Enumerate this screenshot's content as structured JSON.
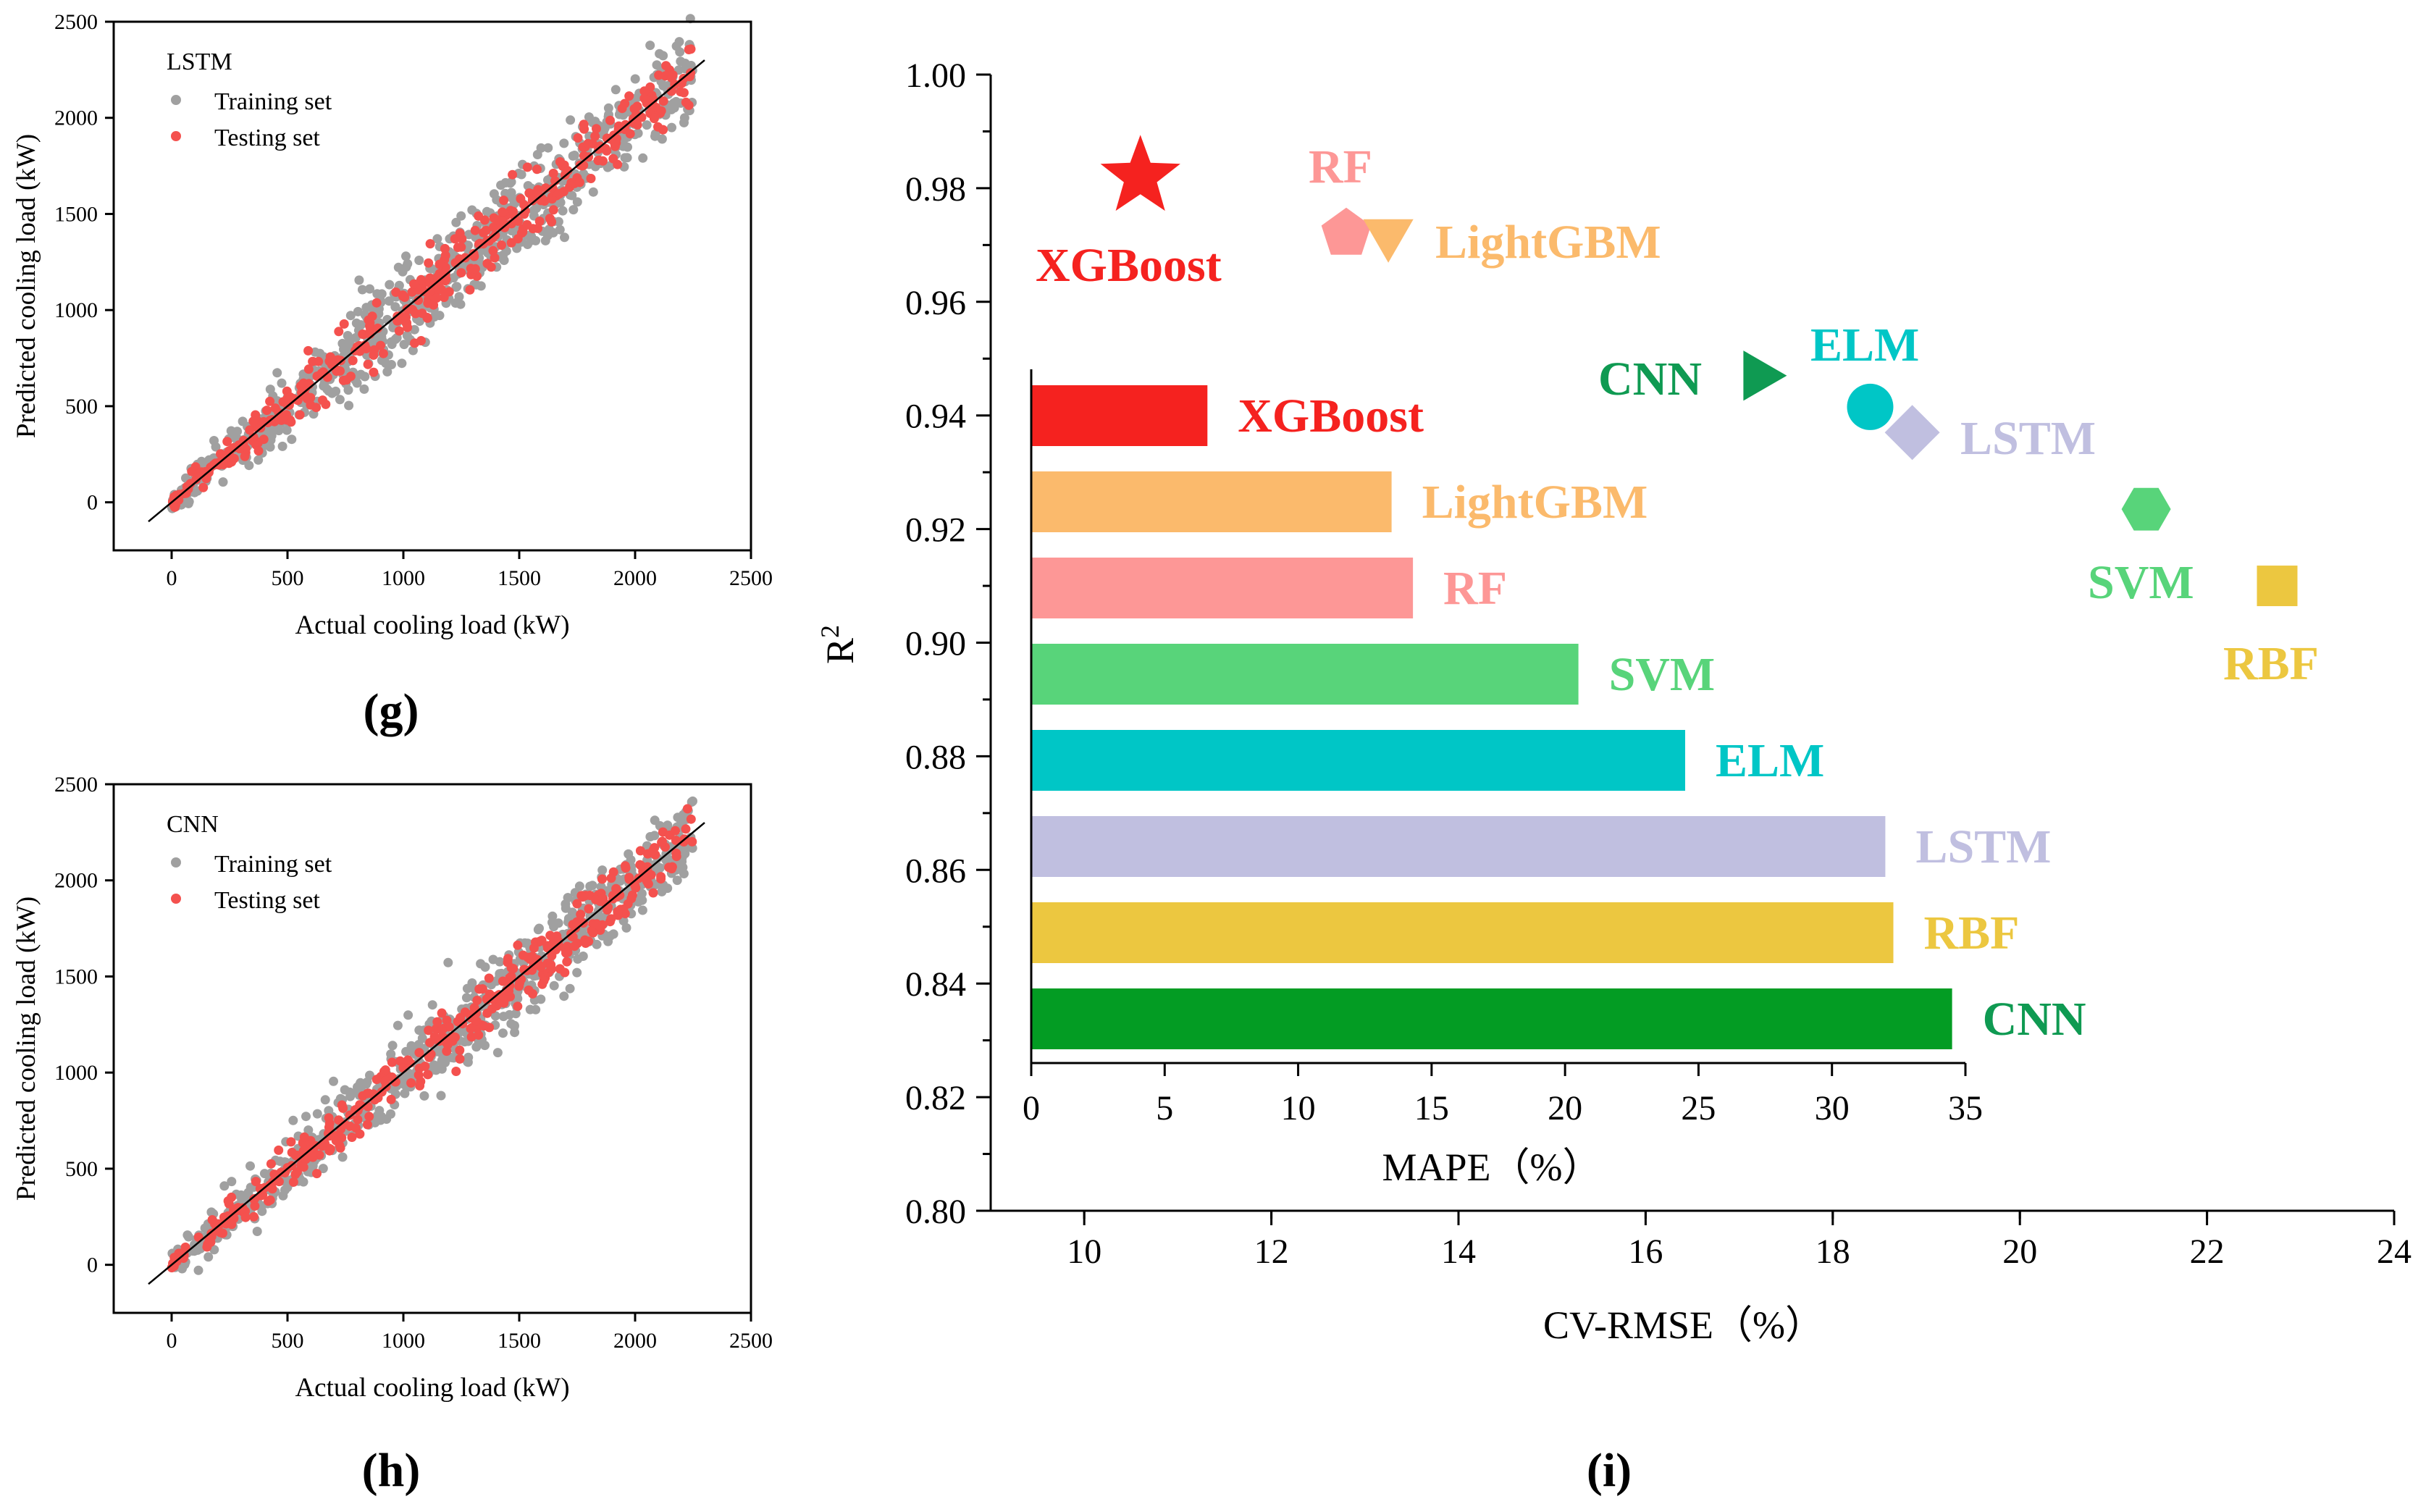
{
  "panels": {
    "g": "(g)",
    "h": "(h)",
    "i": "(i)"
  },
  "chart_data": [
    {
      "type": "scatter",
      "panel": "g",
      "model_name": "LSTM",
      "xlabel": "Actual cooling load (kW)",
      "ylabel": "Predicted cooling load (kW)",
      "xlim": [
        -250,
        2500
      ],
      "ylim": [
        -250,
        2500
      ],
      "xticks": [
        0,
        500,
        1000,
        1500,
        2000,
        2500
      ],
      "yticks": [
        0,
        500,
        1000,
        1500,
        2000,
        2500
      ],
      "reference_line": [
        [
          -100,
          -100
        ],
        [
          2300,
          2300
        ]
      ],
      "reference_line_color": "#000000",
      "legend": [
        {
          "name": "Training set",
          "color": "#a0a0a0"
        },
        {
          "name": "Testing set",
          "color": "#f4514e"
        }
      ],
      "point_cloud": {
        "x_range": [
          0,
          2250
        ],
        "training_spread": 200,
        "testing_spread": 140,
        "training_count": 700,
        "testing_count": 400,
        "seed": 7
      }
    },
    {
      "type": "scatter",
      "panel": "h",
      "model_name": "CNN",
      "xlabel": "Actual cooling load (kW)",
      "ylabel": "Predicted cooling load (kW)",
      "xlim": [
        -250,
        2500
      ],
      "ylim": [
        -250,
        2500
      ],
      "xticks": [
        0,
        500,
        1000,
        1500,
        2000,
        2500
      ],
      "yticks": [
        0,
        500,
        1000,
        1500,
        2000,
        2500
      ],
      "reference_line": [
        [
          -100,
          -100
        ],
        [
          2300,
          2300
        ]
      ],
      "reference_line_color": "#000000",
      "legend": [
        {
          "name": "Training set",
          "color": "#a0a0a0"
        },
        {
          "name": "Testing set",
          "color": "#f4514e"
        }
      ],
      "point_cloud": {
        "x_range": [
          0,
          2250
        ],
        "training_spread": 180,
        "testing_spread": 130,
        "training_count": 700,
        "testing_count": 400,
        "seed": 21
      }
    },
    {
      "type": "scatter",
      "panel": "i",
      "xlabel": "CV-RMSE（%）",
      "ylabel": "R",
      "ylabel_superscript": "2",
      "xlim": [
        9,
        24
      ],
      "ylim": [
        0.8,
        1.0
      ],
      "xticks": [
        10,
        12,
        14,
        16,
        18,
        20,
        22,
        24
      ],
      "yticks": [
        "0.80",
        "0.82",
        "0.84",
        "0.86",
        "0.88",
        "0.90",
        "0.92",
        "0.94",
        "0.96",
        "0.98",
        "1.00"
      ],
      "points": [
        {
          "model": "XGBoost",
          "cv_rmse": 10.6,
          "r2": 0.982,
          "marker": "star",
          "color": "#f5221f"
        },
        {
          "model": "RF",
          "cv_rmse": 12.8,
          "r2": 0.972,
          "marker": "pentagon",
          "color": "#fd9796"
        },
        {
          "model": "LightGBM",
          "cv_rmse": 13.25,
          "r2": 0.972,
          "marker": "triangle-down",
          "color": "#fbba6c"
        },
        {
          "model": "CNN",
          "cv_rmse": 17.2,
          "r2": 0.947,
          "marker": "triangle-right",
          "color": "#0f9a52"
        },
        {
          "model": "ELM",
          "cv_rmse": 18.4,
          "r2": 0.9415,
          "marker": "circle",
          "color": "#00c6c6"
        },
        {
          "model": "LSTM",
          "cv_rmse": 18.85,
          "r2": 0.937,
          "marker": "diamond",
          "color": "#c0bfe0"
        },
        {
          "model": "SVM",
          "cv_rmse": 21.35,
          "r2": 0.9235,
          "marker": "hexagon",
          "color": "#58d47a"
        },
        {
          "model": "RBF",
          "cv_rmse": 22.75,
          "r2": 0.91,
          "marker": "square",
          "color": "#ecc740"
        }
      ]
    },
    {
      "type": "bar",
      "panel": "i-inset",
      "orientation": "horizontal",
      "xlabel": "MAPE（%）",
      "xlim": [
        0,
        35
      ],
      "xticks": [
        0,
        5,
        10,
        15,
        20,
        25,
        30,
        35
      ],
      "categories": [
        "XGBoost",
        "LightGBM",
        "RF",
        "SVM",
        "ELM",
        "LSTM",
        "RBF",
        "CNN"
      ],
      "values": [
        6.6,
        13.5,
        14.3,
        20.5,
        24.5,
        32.0,
        32.3,
        34.5
      ],
      "colors": [
        "#f5221f",
        "#fbba6c",
        "#fd9796",
        "#58d47a",
        "#00c6c6",
        "#c0bfe0",
        "#ecc740",
        "#039c23"
      ],
      "label_colors": [
        "#f5221f",
        "#fbba6c",
        "#fd9796",
        "#58d47a",
        "#00c6c6",
        "#c0bfe0",
        "#ecc740",
        "#0f9a52"
      ]
    }
  ]
}
